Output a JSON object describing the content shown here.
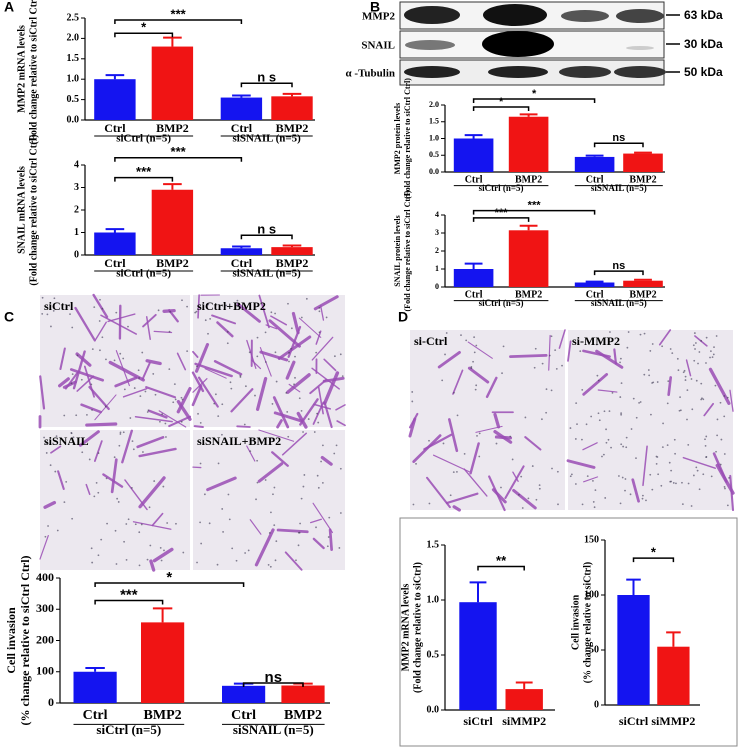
{
  "panel_labels": [
    "A",
    "B",
    "C",
    "D"
  ],
  "blot": {
    "labels": [
      "MMP2",
      "SNAIL",
      "α -Tubulin"
    ],
    "sizes": [
      "63 kDa",
      "30 kDa",
      "50 kDa"
    ]
  },
  "micrographs": [
    "siCtrl",
    "siCtrl+BMP2",
    "siSNAIL",
    "siSNAIL+BMP2",
    "si-Ctrl",
    "si-MMP2"
  ],
  "chart_data": [
    {
      "type": "bar",
      "ylabel": "MMP2 mRNA levels",
      "ylabel_sub": "(Fold change relative to siCtrl Ctrl)",
      "categories": [
        "Ctrl",
        "BMP2",
        "Ctrl",
        "BMP2"
      ],
      "groups": [
        "siCtrl (n=5)",
        "siSNAIL (n=5)"
      ],
      "values": [
        1.0,
        1.8,
        0.55,
        0.58
      ],
      "errors": [
        0.1,
        0.22,
        0.05,
        0.06
      ],
      "colors": [
        "#1414f0",
        "#f01414",
        "#1414f0",
        "#f01414"
      ],
      "ylim": [
        0,
        2.5
      ],
      "yticks": [
        {
          "value": 0,
          "label": "0.0"
        },
        0.5,
        {
          "value": 1,
          "label": "1.0"
        },
        1.5,
        {
          "value": 2,
          "label": "2.0"
        },
        2.5
      ],
      "annotations": [
        {
          "text": "*",
          "from": 0,
          "to": 1
        },
        {
          "text": "***",
          "from": 0,
          "to": 2
        },
        {
          "text": "n s",
          "from": 2,
          "to": 3
        }
      ]
    },
    {
      "type": "bar",
      "ylabel": "SNAIL mRNA levels",
      "ylabel_sub": "(Fold change relative to siCtrl Ctrl)",
      "categories": [
        "Ctrl",
        "BMP2",
        "Ctrl",
        "BMP2"
      ],
      "groups": [
        "siCtrl (n=5)",
        "siSNAIL (n=5)"
      ],
      "values": [
        1.0,
        2.9,
        0.3,
        0.35
      ],
      "errors": [
        0.15,
        0.25,
        0.08,
        0.07
      ],
      "colors": [
        "#1414f0",
        "#f01414",
        "#1414f0",
        "#f01414"
      ],
      "ylim": [
        0,
        4
      ],
      "yticks": [
        0,
        1,
        2,
        3,
        4
      ],
      "annotations": [
        {
          "text": "***",
          "from": 0,
          "to": 1
        },
        {
          "text": "***",
          "from": 0,
          "to": 2
        },
        {
          "text": "n s",
          "from": 2,
          "to": 3
        }
      ]
    },
    {
      "type": "bar",
      "ylabel": "MMP2 protein levels",
      "ylabel_sub": "(Fold change relative to siCtrl Ctrl)",
      "categories": [
        "Ctrl",
        "BMP2",
        "Ctrl",
        "BMP2"
      ],
      "groups": [
        "siCtrl (n=5)",
        "siSNAIL (n=5)"
      ],
      "values": [
        1.0,
        1.65,
        0.45,
        0.55
      ],
      "errors": [
        0.1,
        0.07,
        0.04,
        0.03
      ],
      "colors": [
        "#1414f0",
        "#f01414",
        "#1414f0",
        "#f01414"
      ],
      "ylim": [
        0,
        2
      ],
      "yticks": [
        {
          "value": 0,
          "label": "0.0"
        },
        0.5,
        {
          "value": 1,
          "label": "1.0"
        },
        1.5,
        {
          "value": 2,
          "label": "2.0"
        }
      ],
      "annotations": [
        {
          "text": "*",
          "from": 0,
          "to": 1
        },
        {
          "text": "*",
          "from": 0,
          "to": 2
        },
        {
          "text": "ns",
          "from": 2,
          "to": 3
        }
      ]
    },
    {
      "type": "bar",
      "ylabel": "SNAIL protein levels",
      "ylabel_sub": "(Fold change relative to siCtrl Ctrl)",
      "categories": [
        "Ctrl",
        "BMP2",
        "Ctrl",
        "BMP2"
      ],
      "groups": [
        "siCtrl (n=5)",
        "siSNAIL (n=5)"
      ],
      "values": [
        1.0,
        3.15,
        0.25,
        0.35
      ],
      "errors": [
        0.3,
        0.25,
        0.05,
        0.05
      ],
      "colors": [
        "#1414f0",
        "#f01414",
        "#1414f0",
        "#f01414"
      ],
      "ylim": [
        0,
        4
      ],
      "yticks": [
        0,
        1,
        2,
        3,
        4
      ],
      "annotations": [
        {
          "text": "***",
          "from": 0,
          "to": 1
        },
        {
          "text": "***",
          "from": 0,
          "to": 2
        },
        {
          "text": "ns",
          "from": 2,
          "to": 3
        }
      ]
    },
    {
      "type": "bar",
      "ylabel": "Cell invasion",
      "ylabel_sub": "(% change relative to siCtrl Ctrl)",
      "categories": [
        "Ctrl",
        "BMP2",
        "Ctrl",
        "BMP2"
      ],
      "groups": [
        "siCtrl (n=5)",
        "siSNAIL (n=5)"
      ],
      "values": [
        100,
        258,
        55,
        56
      ],
      "errors": [
        12,
        45,
        7,
        6
      ],
      "colors": [
        "#1414f0",
        "#f01414",
        "#1414f0",
        "#f01414"
      ],
      "ylim": [
        0,
        400
      ],
      "yticks": [
        0,
        100,
        200,
        300,
        400
      ],
      "annotations": [
        {
          "text": "***",
          "from": 0,
          "to": 1
        },
        {
          "text": "*",
          "from": 0,
          "to": 2
        },
        {
          "text": "ns",
          "from": 2,
          "to": 3
        }
      ]
    },
    {
      "type": "bar",
      "ylabel": "MMP2 mRNA levels",
      "ylabel_sub": "(Fold change relative to siCtrl)",
      "categories": [
        "siCtrl",
        "siMMP2"
      ],
      "values": [
        0.98,
        0.19
      ],
      "errors": [
        0.18,
        0.06
      ],
      "colors": [
        "#1414f0",
        "#f01414"
      ],
      "ylim": [
        0,
        1.5
      ],
      "yticks": [
        {
          "value": 0,
          "label": "0.0"
        },
        0.5,
        {
          "value": 1,
          "label": "1.0"
        },
        1.5
      ],
      "annotations": [
        {
          "text": "**",
          "from": 0,
          "to": 1
        }
      ]
    },
    {
      "type": "bar",
      "ylabel": "Cell invasion",
      "ylabel_sub": "(% change relative to siCtrl)",
      "categories": [
        "siCtrl",
        "siMMP2"
      ],
      "values": [
        100,
        53
      ],
      "errors": [
        14,
        13
      ],
      "colors": [
        "#1414f0",
        "#f01414"
      ],
      "ylim": [
        0,
        150
      ],
      "yticks": [
        0,
        50,
        100,
        150
      ],
      "annotations": [
        {
          "text": "*",
          "from": 0,
          "to": 1
        }
      ]
    }
  ]
}
